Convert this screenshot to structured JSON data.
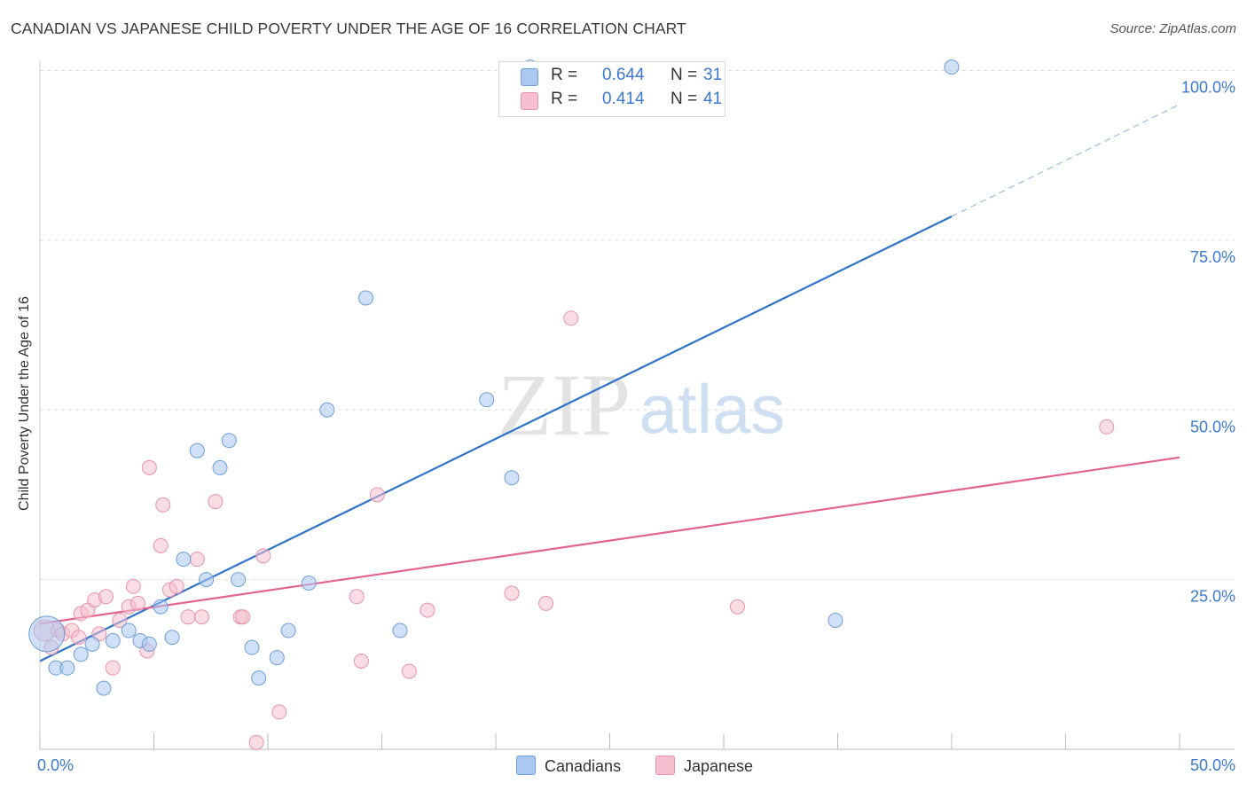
{
  "title": "CANADIAN VS JAPANESE CHILD POVERTY UNDER THE AGE OF 16 CORRELATION CHART",
  "source": "Source: ZipAtlas.com",
  "watermark": {
    "zip": "ZIP",
    "atlas": "atlas"
  },
  "legend_top": [
    {
      "r_label": "R =",
      "r_value": "0.644",
      "n_label": "N =",
      "n_value": "31"
    },
    {
      "r_label": "R =",
      "r_value": "0.414",
      "n_label": "N =",
      "n_value": "41"
    }
  ],
  "legend_bottom": {
    "canadians": "Canadians",
    "japanese": "Japanese"
  },
  "colors": {
    "blue_fill": "#aac8f0",
    "blue_stroke": "#6e9ed8",
    "blue_line": "#2f74c8",
    "pink_fill": "#f6bfcf",
    "pink_stroke": "#e893ad",
    "pink_line": "#e2658f",
    "axis_label": "#3b78d0",
    "grid": "#dddddd"
  },
  "chart_data": {
    "type": "scatter",
    "title": "CANADIAN VS JAPANESE CHILD POVERTY UNDER THE AGE OF 16 CORRELATION CHART",
    "xlabel": "",
    "ylabel": "Child Poverty Under the Age of 16",
    "xlim": [
      0,
      50
    ],
    "ylim": [
      0,
      100
    ],
    "x_tick_labels": [
      "0.0%",
      "50.0%"
    ],
    "y_ticks": [
      25,
      50,
      75,
      100
    ],
    "y_tick_labels": [
      "25.0%",
      "50.0%",
      "75.0%",
      "100.0%"
    ],
    "grid": true,
    "series": [
      {
        "name": "Canadians",
        "R": 0.644,
        "N": 31,
        "trend": {
          "x0": 0,
          "y0": 13.0,
          "x1": 40,
          "y1": 78.5,
          "dash_x1": 50,
          "dash_y1": 95.0
        },
        "points": [
          [
            0.3,
            17.0,
            2.5
          ],
          [
            0.7,
            12.0,
            1
          ],
          [
            1.2,
            12.0,
            1
          ],
          [
            1.8,
            14.0,
            1
          ],
          [
            2.3,
            15.5,
            1
          ],
          [
            2.8,
            9.0,
            1
          ],
          [
            3.2,
            16.0,
            1
          ],
          [
            3.9,
            17.5,
            1
          ],
          [
            4.4,
            16.0,
            1
          ],
          [
            4.8,
            15.5,
            1
          ],
          [
            5.3,
            21.0,
            1
          ],
          [
            5.8,
            16.5,
            1
          ],
          [
            6.3,
            28.0,
            1
          ],
          [
            6.9,
            44.0,
            1
          ],
          [
            7.3,
            25.0,
            1
          ],
          [
            7.9,
            41.5,
            1
          ],
          [
            8.3,
            45.5,
            1
          ],
          [
            8.7,
            25.0,
            1
          ],
          [
            9.3,
            15.0,
            1
          ],
          [
            9.6,
            10.5,
            1
          ],
          [
            10.4,
            13.5,
            1
          ],
          [
            10.9,
            17.5,
            1
          ],
          [
            11.8,
            24.5,
            1
          ],
          [
            12.6,
            50.0,
            1
          ],
          [
            14.3,
            66.5,
            1
          ],
          [
            15.8,
            17.5,
            1
          ],
          [
            19.6,
            51.5,
            1
          ],
          [
            20.7,
            40.0,
            1
          ],
          [
            21.5,
            100.5,
            1
          ],
          [
            34.9,
            19.0,
            1
          ],
          [
            40.0,
            100.5,
            1
          ]
        ]
      },
      {
        "name": "Japanese",
        "R": 0.414,
        "N": 41,
        "trend": {
          "x0": 0,
          "y0": 18.5,
          "x1": 50,
          "y1": 43.0
        },
        "points": [
          [
            0.2,
            17.5,
            1.5
          ],
          [
            0.5,
            15.0,
            1
          ],
          [
            0.8,
            17.5,
            1
          ],
          [
            1.0,
            17.0,
            1
          ],
          [
            1.4,
            17.5,
            1
          ],
          [
            1.7,
            16.5,
            1
          ],
          [
            1.8,
            20.0,
            1
          ],
          [
            2.1,
            20.5,
            1
          ],
          [
            2.4,
            22.0,
            1
          ],
          [
            2.6,
            17.0,
            1
          ],
          [
            2.9,
            22.5,
            1
          ],
          [
            3.2,
            12.0,
            1
          ],
          [
            3.5,
            19.0,
            1
          ],
          [
            3.9,
            21.0,
            1
          ],
          [
            4.1,
            24.0,
            1
          ],
          [
            4.3,
            21.5,
            1
          ],
          [
            4.7,
            14.5,
            1
          ],
          [
            4.8,
            41.5,
            1
          ],
          [
            5.3,
            30.0,
            1
          ],
          [
            5.4,
            36.0,
            1
          ],
          [
            5.7,
            23.5,
            1
          ],
          [
            6.0,
            24.0,
            1
          ],
          [
            6.5,
            19.5,
            1
          ],
          [
            6.9,
            28.0,
            1
          ],
          [
            7.1,
            19.5,
            1
          ],
          [
            7.7,
            36.5,
            1
          ],
          [
            8.8,
            19.5,
            1
          ],
          [
            8.9,
            19.5,
            1
          ],
          [
            9.5,
            1.0,
            1
          ],
          [
            9.8,
            28.5,
            1
          ],
          [
            10.5,
            5.5,
            1
          ],
          [
            13.9,
            22.5,
            1
          ],
          [
            14.1,
            13.0,
            1
          ],
          [
            14.8,
            37.5,
            1
          ],
          [
            16.2,
            11.5,
            1
          ],
          [
            17.0,
            20.5,
            1
          ],
          [
            20.7,
            23.0,
            1
          ],
          [
            22.2,
            21.5,
            1
          ],
          [
            23.3,
            63.5,
            1
          ],
          [
            30.6,
            21.0,
            1
          ],
          [
            46.8,
            47.5,
            1
          ]
        ]
      }
    ]
  }
}
